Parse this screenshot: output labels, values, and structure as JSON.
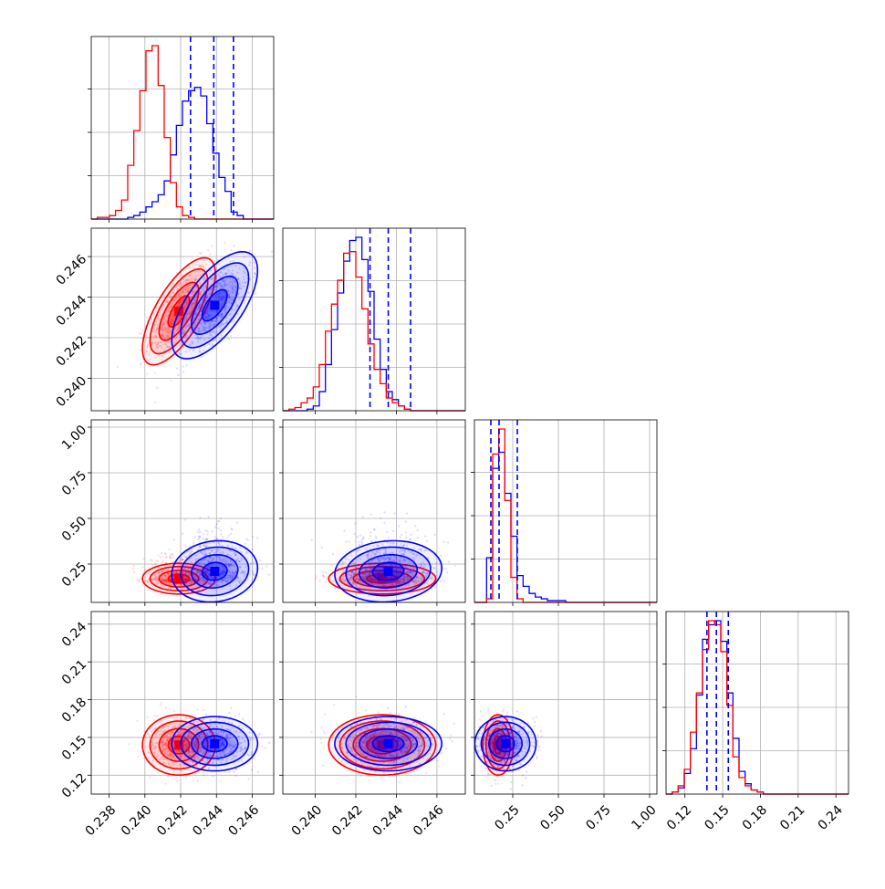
{
  "chart_data": {
    "type": "corner",
    "title": "",
    "parameters": 4,
    "grid": true,
    "colors": {
      "model_a": "#ff0000",
      "model_b": "#0000ff"
    },
    "axes": [
      {
        "range": [
          0.237,
          0.2472
        ],
        "ticks": [
          0.238,
          0.24,
          0.242,
          0.244,
          0.246
        ],
        "tick_labels": [
          "0.238",
          "0.240",
          "0.242",
          "0.244",
          "0.246"
        ]
      },
      {
        "range": [
          0.2384,
          0.2474
        ],
        "ticks": [
          0.24,
          0.242,
          0.244,
          0.246
        ],
        "tick_labels": [
          "0.240",
          "0.242",
          "0.244",
          "0.246"
        ]
      },
      {
        "range": [
          0.04,
          1.04
        ],
        "ticks": [
          0.25,
          0.5,
          0.75,
          1.0
        ],
        "tick_labels": [
          "0.25",
          "0.50",
          "0.75",
          "1.00"
        ]
      },
      {
        "range": [
          0.105,
          0.25
        ],
        "ticks": [
          0.12,
          0.15,
          0.18,
          0.21,
          0.24
        ],
        "tick_labels": [
          "0.12",
          "0.15",
          "0.18",
          "0.21",
          "0.24"
        ]
      }
    ],
    "diagonal_histograms": [
      {
        "bins": [
          0.237,
          0.2472,
          30
        ],
        "red": [
          0.0,
          0.01,
          0.01,
          0.02,
          0.05,
          0.11,
          0.31,
          0.51,
          0.74,
          0.97,
          1.0,
          0.77,
          0.47,
          0.21,
          0.07,
          0.02,
          0.01,
          0.0,
          0.0,
          0.0,
          0.0,
          0.0,
          0.0,
          0.0,
          0.0,
          0.0,
          0.0,
          0.0,
          0.0,
          0.0
        ],
        "blue": [
          0.0,
          0.0,
          0.0,
          0.0,
          0.0,
          0.0,
          0.01,
          0.02,
          0.04,
          0.07,
          0.1,
          0.14,
          0.22,
          0.37,
          0.54,
          0.68,
          0.74,
          0.76,
          0.71,
          0.55,
          0.38,
          0.24,
          0.16,
          0.04,
          0.02,
          0.0,
          0.0,
          0.0,
          0.0,
          0.0
        ],
        "quantiles": [
          0.24255,
          0.24385,
          0.24495
        ]
      },
      {
        "bins": [
          0.2384,
          0.2474,
          30
        ],
        "red": [
          0.0,
          0.01,
          0.02,
          0.05,
          0.08,
          0.15,
          0.29,
          0.5,
          0.67,
          0.82,
          0.99,
          1.0,
          0.84,
          0.64,
          0.42,
          0.26,
          0.17,
          0.08,
          0.05,
          0.03,
          0.01,
          0.0,
          0.0,
          0.0,
          0.0,
          0.0,
          0.0,
          0.0,
          0.0,
          0.0
        ],
        "blue": [
          0.0,
          0.0,
          0.0,
          0.0,
          0.01,
          0.03,
          0.12,
          0.29,
          0.51,
          0.74,
          0.94,
          1.07,
          1.09,
          0.95,
          0.75,
          0.45,
          0.26,
          0.12,
          0.07,
          0.03,
          0.01,
          0.0,
          0.0,
          0.0,
          0.0,
          0.0,
          0.0,
          0.0,
          0.0,
          0.0
        ],
        "quantiles": [
          0.2427,
          0.2436,
          0.2447
        ]
      },
      {
        "bins": [
          0.04,
          1.04,
          30
        ],
        "red": [
          0.0,
          0.0,
          0.02,
          0.83,
          0.97,
          0.57,
          0.14,
          0.02,
          0.0,
          0.0,
          0.0,
          0.0,
          0.0,
          0.0,
          0.0,
          0.0,
          0.0,
          0.0,
          0.0,
          0.0,
          0.0,
          0.0,
          0.0,
          0.0,
          0.0,
          0.0,
          0.0,
          0.0,
          0.0,
          0.0
        ],
        "blue": [
          0.0,
          0.0,
          0.25,
          0.75,
          0.84,
          0.61,
          0.37,
          0.15,
          0.09,
          0.05,
          0.03,
          0.02,
          0.01,
          0.01,
          0.01,
          0.0,
          0.0,
          0.0,
          0.0,
          0.0,
          0.0,
          0.0,
          0.0,
          0.0,
          0.0,
          0.0,
          0.0,
          0.0,
          0.0,
          0.0
        ],
        "quantiles": [
          0.13,
          0.175,
          0.275
        ]
      },
      {
        "bins": [
          0.105,
          0.25,
          30
        ],
        "red": [
          0.0,
          0.01,
          0.04,
          0.12,
          0.3,
          0.49,
          0.7,
          0.84,
          0.82,
          0.69,
          0.43,
          0.18,
          0.08,
          0.04,
          0.02,
          0.01,
          0.0,
          0.0,
          0.0,
          0.0,
          0.0,
          0.0,
          0.0,
          0.0,
          0.0,
          0.0,
          0.0,
          0.0,
          0.0,
          0.0
        ],
        "blue": [
          0.0,
          0.01,
          0.03,
          0.1,
          0.22,
          0.48,
          0.75,
          0.82,
          0.84,
          0.74,
          0.49,
          0.27,
          0.11,
          0.05,
          0.02,
          0.01,
          0.0,
          0.0,
          0.0,
          0.0,
          0.0,
          0.0,
          0.0,
          0.0,
          0.0,
          0.0,
          0.0,
          0.0,
          0.0,
          0.0
        ],
        "quantiles": [
          0.1375,
          0.145,
          0.1545
        ]
      }
    ],
    "joint_distributions": [
      {
        "x": 0,
        "y": 1,
        "red": {
          "mean": [
            0.2419,
            0.2433
          ],
          "sd": [
            0.00085,
            0.0011
          ],
          "corr": 0.7
        },
        "blue": {
          "mean": [
            0.2439,
            0.2436
          ],
          "sd": [
            0.001,
            0.0011
          ],
          "corr": 0.65
        }
      },
      {
        "x": 0,
        "y": 2,
        "red": {
          "mean": [
            0.2419,
            0.17
          ],
          "sd": [
            0.00085,
            0.035
          ],
          "corr": 0.0
        },
        "blue": {
          "mean": [
            0.2439,
            0.21
          ],
          "sd": [
            0.001,
            0.07
          ],
          "corr": 0.1
        }
      },
      {
        "x": 1,
        "y": 2,
        "red": {
          "mean": [
            0.2433,
            0.17
          ],
          "sd": [
            0.0011,
            0.035
          ],
          "corr": 0.0
        },
        "blue": {
          "mean": [
            0.2436,
            0.21
          ],
          "sd": [
            0.0011,
            0.07
          ],
          "corr": 0.1
        }
      },
      {
        "x": 0,
        "y": 3,
        "red": {
          "mean": [
            0.2419,
            0.144
          ],
          "sd": [
            0.00085,
            0.01
          ],
          "corr": 0.0
        },
        "blue": {
          "mean": [
            0.2439,
            0.145
          ],
          "sd": [
            0.001,
            0.009
          ],
          "corr": 0.0
        }
      },
      {
        "x": 1,
        "y": 3,
        "red": {
          "mean": [
            0.2433,
            0.144
          ],
          "sd": [
            0.0011,
            0.01
          ],
          "corr": 0.0
        },
        "blue": {
          "mean": [
            0.2436,
            0.145
          ],
          "sd": [
            0.0011,
            0.009
          ],
          "corr": 0.0
        }
      },
      {
        "x": 2,
        "y": 3,
        "red": {
          "mean": [
            0.17,
            0.144
          ],
          "sd": [
            0.035,
            0.01
          ],
          "corr": 0.0
        },
        "blue": {
          "mean": [
            0.21,
            0.145
          ],
          "sd": [
            0.07,
            0.009
          ],
          "corr": 0.0
        }
      }
    ]
  }
}
